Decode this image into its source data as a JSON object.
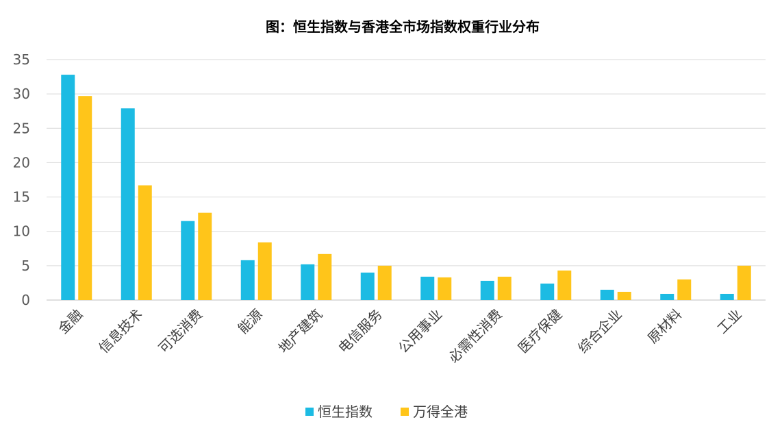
{
  "chart_data": {
    "type": "bar",
    "title": "图：恒生指数与香港全市场指数权重行业分布",
    "xlabel": "",
    "ylabel": "",
    "ylim": [
      0,
      35
    ],
    "yticks": [
      0,
      5,
      10,
      15,
      20,
      25,
      30,
      35
    ],
    "grid": true,
    "legend_position": "bottom",
    "categories": [
      "金融",
      "信息技术",
      "可选消费",
      "能源",
      "地产建筑",
      "电信服务",
      "公用事业",
      "必需性消费",
      "医疗保健",
      "综合企业",
      "原材料",
      "工业"
    ],
    "series": [
      {
        "name": "恒生指数",
        "color": "#1CBBE3",
        "values": [
          32.8,
          27.9,
          11.5,
          5.8,
          5.2,
          4.0,
          3.4,
          2.8,
          2.4,
          1.5,
          0.9,
          0.9
        ]
      },
      {
        "name": "万得全港",
        "color": "#FFC51A",
        "values": [
          29.7,
          16.7,
          12.7,
          8.4,
          6.7,
          5.0,
          3.3,
          3.4,
          4.3,
          1.2,
          3.0,
          5.0
        ]
      }
    ]
  }
}
